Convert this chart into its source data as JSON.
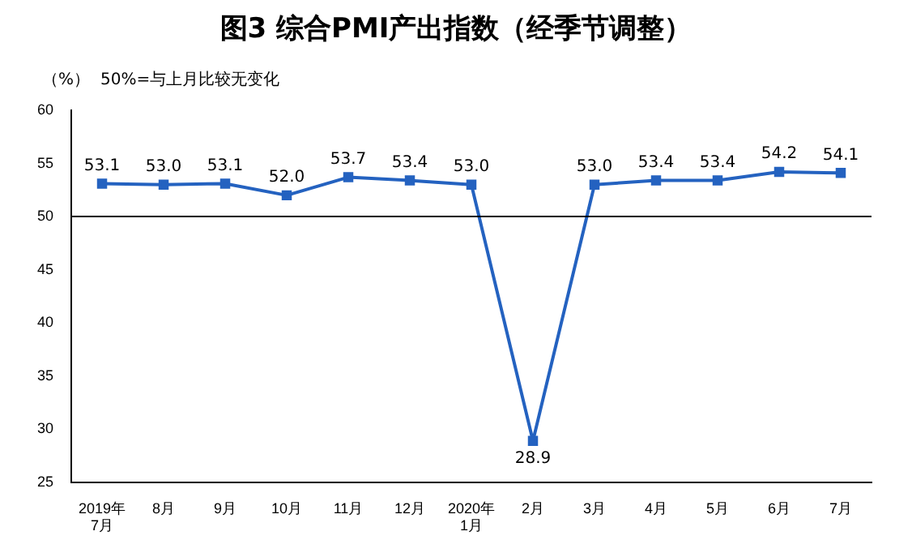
{
  "chart_data": {
    "type": "line",
    "title": "图3 综合PMI产出指数（经季节调整）",
    "ylabel": "（%）",
    "annotations": [
      "50%=与上月比较无变化"
    ],
    "categories": [
      "2019年\n7月",
      "8月",
      "9月",
      "10月",
      "11月",
      "12月",
      "2020年\n1月",
      "2月",
      "3月",
      "4月",
      "5月",
      "6月",
      "7月"
    ],
    "series": [
      {
        "color": "#2462c0",
        "values": [
          53.1,
          53.0,
          53.1,
          52.0,
          53.7,
          53.4,
          53.0,
          28.9,
          53.0,
          53.4,
          53.4,
          54.2,
          54.1
        ],
        "value_labels": [
          "53.1",
          "53.0",
          "53.1",
          "52.0",
          "53.7",
          "53.4",
          "53.0",
          "28.9",
          "53.0",
          "53.4",
          "53.4",
          "54.2",
          "54.1"
        ]
      }
    ],
    "ylim": [
      25,
      60
    ],
    "yticks": [
      25,
      30,
      35,
      40,
      45,
      50,
      55,
      60
    ],
    "ref_lines": [
      {
        "axis": "y",
        "value": 50,
        "color": "#000000"
      }
    ],
    "marker": "square",
    "line_style": "solid",
    "grid": false,
    "legend": false
  }
}
